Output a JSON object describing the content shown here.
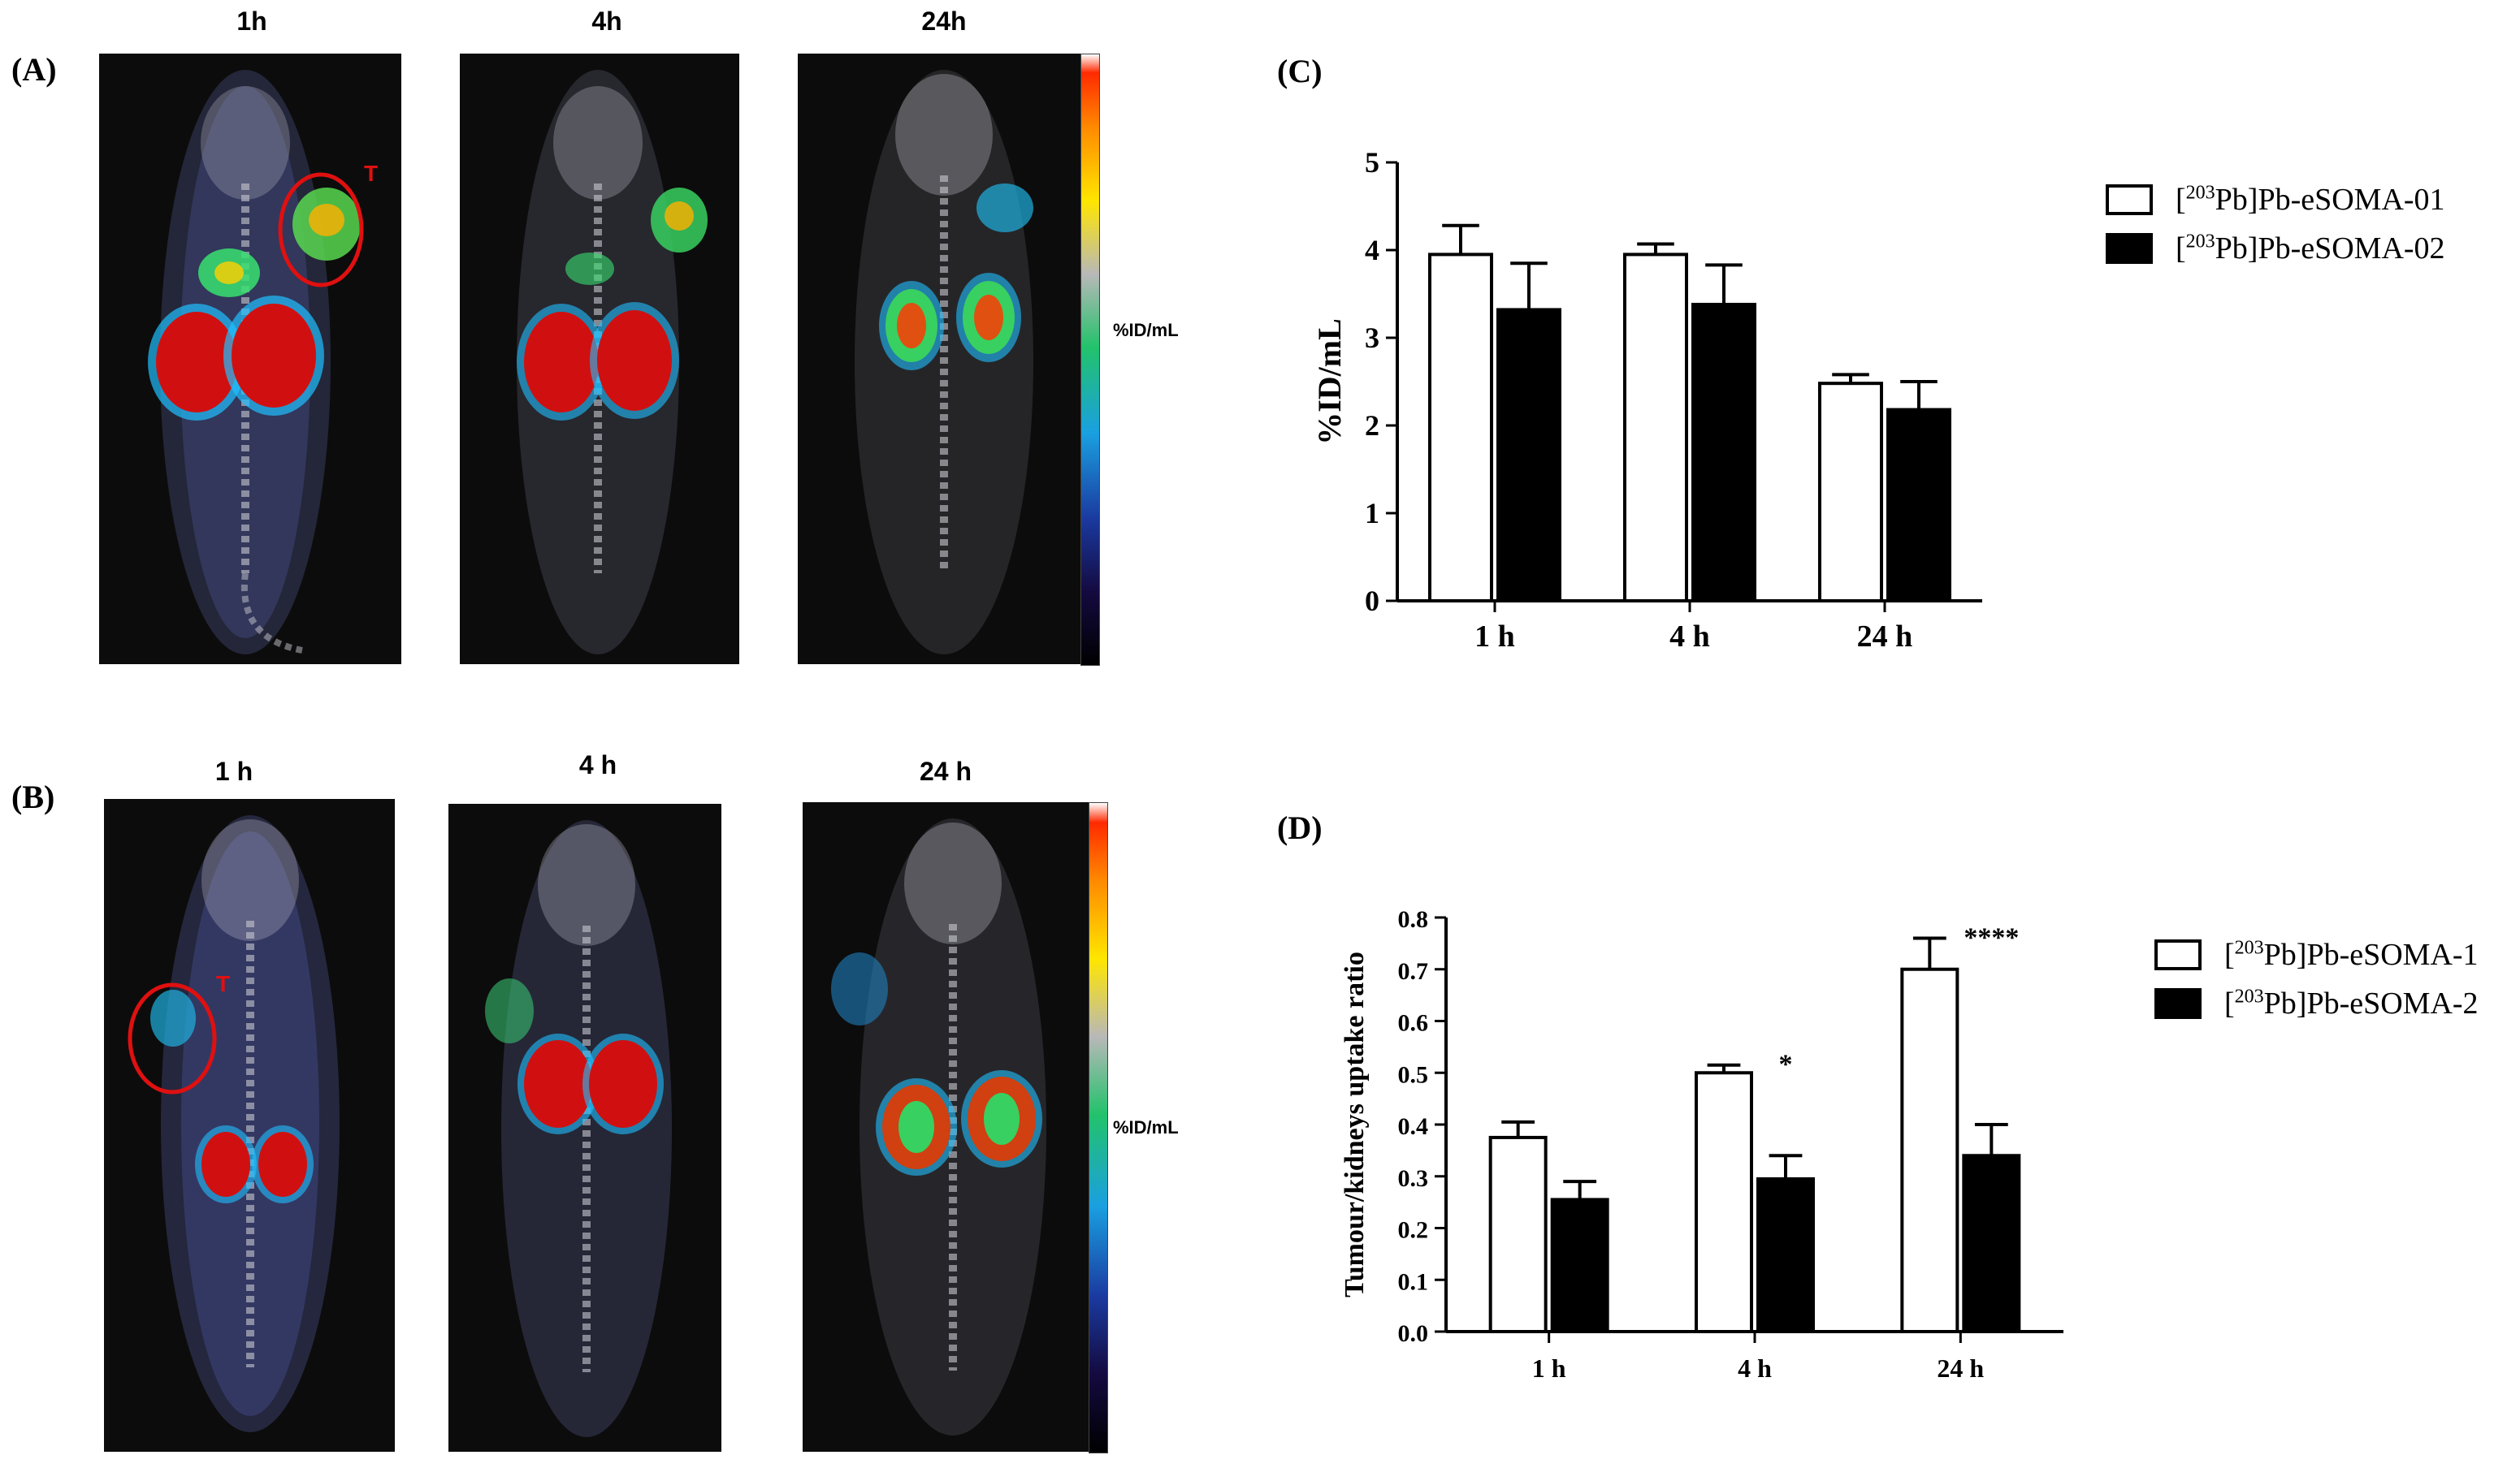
{
  "panels": {
    "A": {
      "letter": "(A)",
      "times": [
        "1h",
        "4h",
        "24h"
      ],
      "tumor_marker": "T",
      "unit": "%ID/mL"
    },
    "B": {
      "letter": "(B)",
      "times": [
        "1 h",
        "4 h",
        "24 h"
      ],
      "tumor_marker": "T",
      "unit": "%ID/mL"
    },
    "C": {
      "letter": "(C)"
    },
    "D": {
      "letter": "(D)"
    }
  },
  "colors": {
    "white_bar": "#ffffff",
    "black_bar": "#000000",
    "tumor_circle": "#e01010"
  },
  "chart_data": [
    {
      "id": "C",
      "type": "bar",
      "categories": [
        "1 h",
        "4 h",
        "24 h"
      ],
      "series": [
        {
          "name_sup": "203",
          "name_rest": "Pb]Pb-eSOMA-01",
          "color": "#ffffff",
          "values": [
            3.95,
            3.95,
            2.48
          ],
          "errors": [
            0.33,
            0.12,
            0.1
          ]
        },
        {
          "name_sup": "203",
          "name_rest": "Pb]Pb-eSOMA-02",
          "color": "#000000",
          "values": [
            3.32,
            3.38,
            2.18
          ],
          "errors": [
            0.53,
            0.45,
            0.32
          ]
        }
      ],
      "title": "",
      "xlabel": "",
      "ylabel": "%ID/mL",
      "ylim": [
        0,
        5
      ],
      "yticks": [
        "0",
        "1",
        "2",
        "3",
        "4",
        "5"
      ],
      "annotations": [
        "",
        "",
        ""
      ]
    },
    {
      "id": "D",
      "type": "bar",
      "categories": [
        "1 h",
        "4 h",
        "24 h"
      ],
      "series": [
        {
          "name_sup": "203",
          "name_rest": "Pb]Pb-eSOMA-1",
          "color": "#ffffff",
          "values": [
            0.375,
            0.5,
            0.7
          ],
          "errors": [
            0.03,
            0.015,
            0.06
          ]
        },
        {
          "name_sup": "203",
          "name_rest": "Pb]Pb-eSOMA-2",
          "color": "#000000",
          "values": [
            0.255,
            0.295,
            0.34
          ],
          "errors": [
            0.035,
            0.045,
            0.06
          ]
        }
      ],
      "title": "",
      "xlabel": "",
      "ylabel": "Tumour/kidneys uptake ratio",
      "ylim": [
        0,
        0.8
      ],
      "yticks": [
        "0.0",
        "0.1",
        "0.2",
        "0.3",
        "0.4",
        "0.5",
        "0.6",
        "0.7",
        "0.8"
      ],
      "annotations": [
        "",
        "*",
        "****"
      ]
    }
  ]
}
